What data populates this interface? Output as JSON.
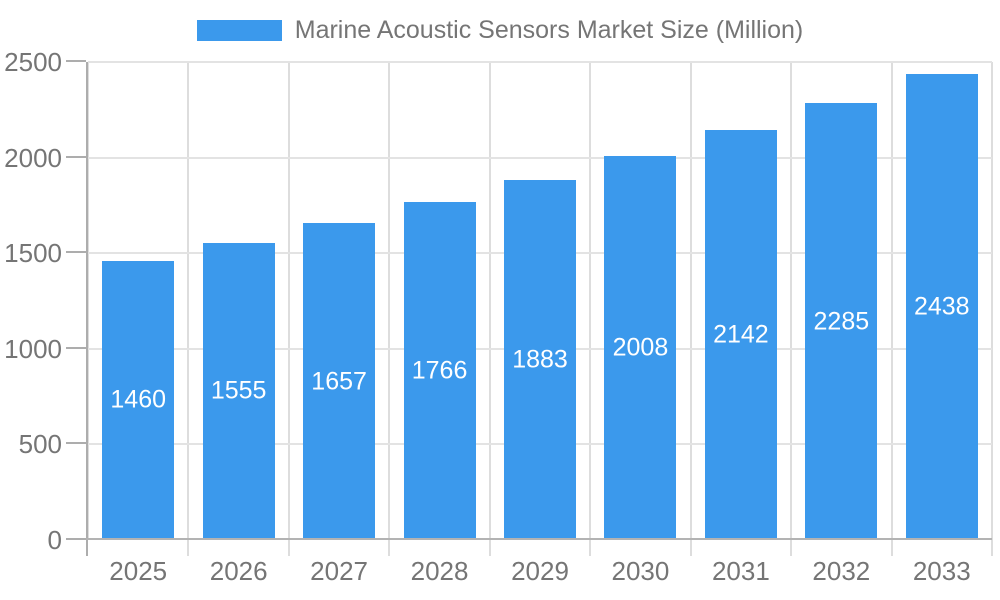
{
  "legend": {
    "label": "Marine Acoustic Sensors Market Size (Million)"
  },
  "chart_data": {
    "type": "bar",
    "title": "Marine Acoustic Sensors Market Size (Million)",
    "series_name": "Marine Acoustic Sensors Market Size (Million)",
    "categories": [
      "2025",
      "2026",
      "2027",
      "2028",
      "2029",
      "2030",
      "2031",
      "2032",
      "2033"
    ],
    "values": [
      1460,
      1555,
      1657,
      1766,
      1883,
      2008,
      2142,
      2285,
      2438
    ],
    "xlabel": "",
    "ylabel": "",
    "ylim": [
      0,
      2500
    ],
    "yticks": [
      0,
      500,
      1000,
      1500,
      2000,
      2500
    ],
    "grid": true,
    "legend_position": "top",
    "value_label_position": "inside-center",
    "colors": {
      "bar": "#3B99EC",
      "value_label": "#FFFFFF",
      "axis_label": "#757575",
      "axis_line": "#B3B3B3",
      "y_axis_line": "#ADADAD",
      "gridline_h": "#E3E3E3",
      "gridline_v": "#DDDDDD",
      "x_tick": "#DDDDDD"
    }
  }
}
